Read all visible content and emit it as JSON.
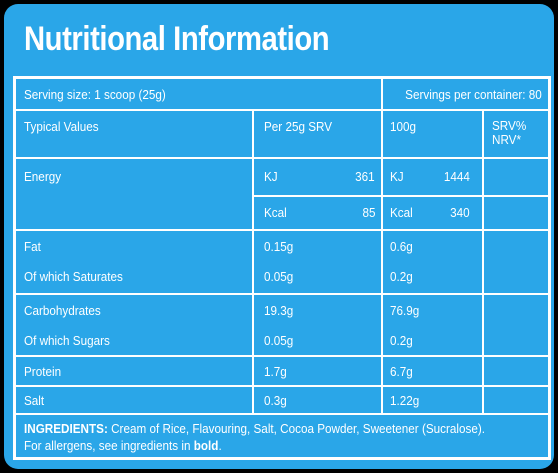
{
  "title": "Nutritional Information",
  "serving_size": "Serving size: 1 scoop (25g)",
  "servings_per_container": "Servings per container: 80",
  "headers": {
    "typical": "Typical Values",
    "per": "Per 25g SRV",
    "per100": "100g",
    "nrv": "SRV% NRV*"
  },
  "energy": {
    "label": "Energy",
    "kj_unit": "KJ",
    "kj_per": "361",
    "kj_100": "1444",
    "kcal_unit": "Kcal",
    "kcal_per": "85",
    "kcal_100": "340"
  },
  "rows": {
    "fat": {
      "label": "Fat",
      "per": "0.15g",
      "per100": "0.6g"
    },
    "saturates": {
      "label": "Of which Saturates",
      "per": "0.05g",
      "per100": "0.2g"
    },
    "carbs": {
      "label": "Carbohydrates",
      "per": "19.3g",
      "per100": "76.9g"
    },
    "sugars": {
      "label": "Of which Sugars",
      "per": "0.05g",
      "per100": "0.2g"
    },
    "protein": {
      "label": "Protein",
      "per": "1.7g",
      "per100": "6.7g"
    },
    "salt": {
      "label": "Salt",
      "per": "0.3g",
      "per100": "1.22g"
    }
  },
  "ingredients": {
    "heading": "INGREDIENTS:",
    "text": " Cream of Rice, Flavouring, Salt, Cocoa Powder, Sweetener (Sucralose).",
    "allergen_prefix": "For allergens, see ingredients in ",
    "allergen_bold": "bold",
    "allergen_suffix": "."
  },
  "colors": {
    "background": "#2aa6e8",
    "text": "#ffffff",
    "frame": "#000000"
  }
}
